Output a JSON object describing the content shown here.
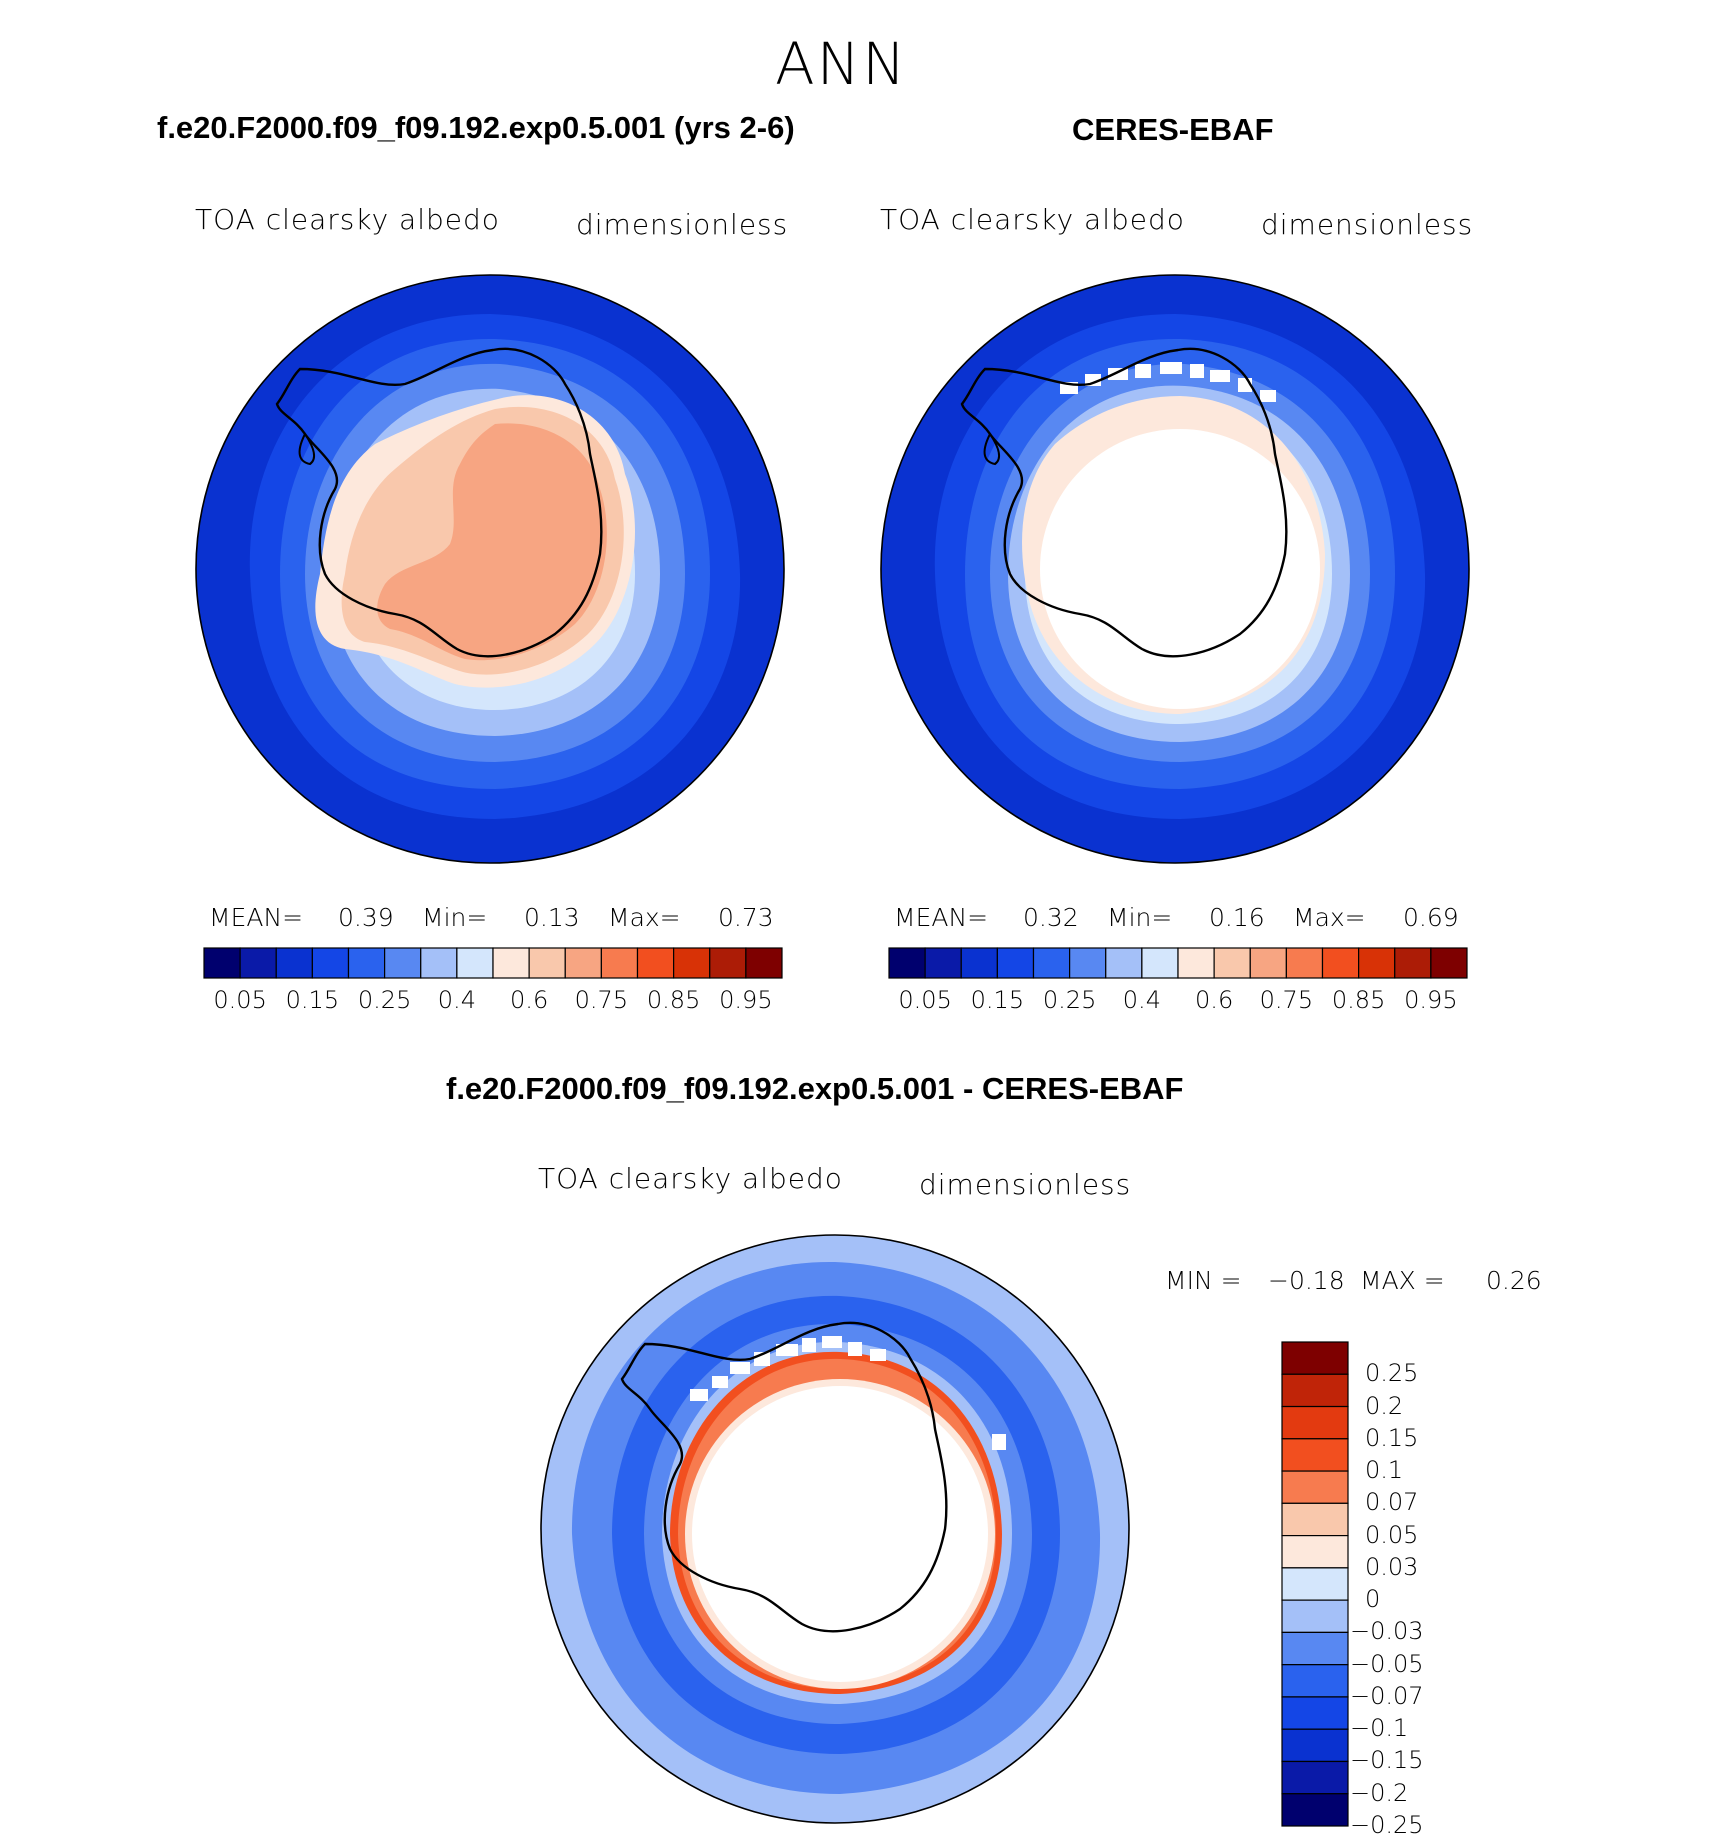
{
  "page": {
    "title": "ANN",
    "palette_abs": [
      "#00006e",
      "#0a1aa8",
      "#0a32d0",
      "#1446e6",
      "#2a62ee",
      "#5888f2",
      "#a4c0f8",
      "#d4e6fc",
      "#fde8dc",
      "#f9c8ac",
      "#f7a582",
      "#f77b4f",
      "#f24f1f",
      "#d83206",
      "#ac1c06",
      "#7e0000"
    ],
    "palette_diff": [
      "#00006e",
      "#0a1aa8",
      "#0a32d0",
      "#1446e6",
      "#2a62ee",
      "#5888f2",
      "#a4c0f8",
      "#d4e6fc",
      "#fde8dc",
      "#f9c8ac",
      "#f77b4f",
      "#f24f1f",
      "#e33a10",
      "#c02408",
      "#7e0000"
    ]
  },
  "panel_model": {
    "title": "f.e20.F2000.f09_f09.192.exp0.5.001 (yrs 2-6)",
    "var_label": "TOA clearsky albedo",
    "units": "dimensionless",
    "stats": {
      "mean_label": "MEAN=",
      "mean": "0.39",
      "min_label": "Min=",
      "min": "0.13",
      "max_label": "Max=",
      "max": "0.73"
    },
    "ticks": [
      "0.05",
      "0.15",
      "0.25",
      "0.4",
      "0.6",
      "0.75",
      "0.85",
      "0.95"
    ]
  },
  "panel_obs": {
    "title": "CERES-EBAF",
    "var_label": "TOA clearsky albedo",
    "units": "dimensionless",
    "stats": {
      "mean_label": "MEAN=",
      "mean": "0.32",
      "min_label": "Min=",
      "min": "0.16",
      "max_label": "Max=",
      "max": "0.69"
    },
    "ticks": [
      "0.05",
      "0.15",
      "0.25",
      "0.4",
      "0.6",
      "0.75",
      "0.85",
      "0.95"
    ]
  },
  "panel_diff": {
    "title": "f.e20.F2000.f09_f09.192.exp0.5.001 - CERES-EBAF",
    "var_label": "TOA clearsky albedo",
    "units": "dimensionless",
    "stats": {
      "min_label": "MIN =",
      "min": "−0.18",
      "max_label": "MAX =",
      "max": "0.26"
    },
    "ticks": [
      "0.25",
      "0.2",
      "0.15",
      "0.1",
      "0.07",
      "0.05",
      "0.03",
      "0",
      "−0.03",
      "−0.05",
      "−0.07",
      "−0.1",
      "−0.15",
      "−0.2",
      "−0.25"
    ]
  },
  "chart_data": [
    {
      "type": "heatmap",
      "projection": "south-polar-stereographic",
      "title": "f.e20.F2000.f09_f09.192.exp0.5.001 (yrs 2-6)",
      "variable": "TOA clearsky albedo",
      "units": "dimensionless",
      "mean": 0.39,
      "min": 0.13,
      "max": 0.73,
      "contour_levels": [
        0.05,
        0.1,
        0.15,
        0.2,
        0.25,
        0.3,
        0.4,
        0.5,
        0.6,
        0.7,
        0.75,
        0.8,
        0.85,
        0.9,
        0.95
      ]
    },
    {
      "type": "heatmap",
      "projection": "south-polar-stereographic",
      "title": "CERES-EBAF",
      "variable": "TOA clearsky albedo",
      "units": "dimensionless",
      "mean": 0.32,
      "min": 0.16,
      "max": 0.69,
      "contour_levels": [
        0.05,
        0.1,
        0.15,
        0.2,
        0.25,
        0.3,
        0.4,
        0.5,
        0.6,
        0.7,
        0.75,
        0.8,
        0.85,
        0.9,
        0.95
      ]
    },
    {
      "type": "heatmap",
      "projection": "south-polar-stereographic",
      "title": "f.e20.F2000.f09_f09.192.exp0.5.001 - CERES-EBAF",
      "variable": "TOA clearsky albedo",
      "units": "dimensionless",
      "min": -0.18,
      "max": 0.26,
      "contour_levels": [
        -0.25,
        -0.2,
        -0.15,
        -0.1,
        -0.07,
        -0.05,
        -0.03,
        0,
        0.03,
        0.05,
        0.07,
        0.1,
        0.15,
        0.2,
        0.25
      ]
    }
  ]
}
